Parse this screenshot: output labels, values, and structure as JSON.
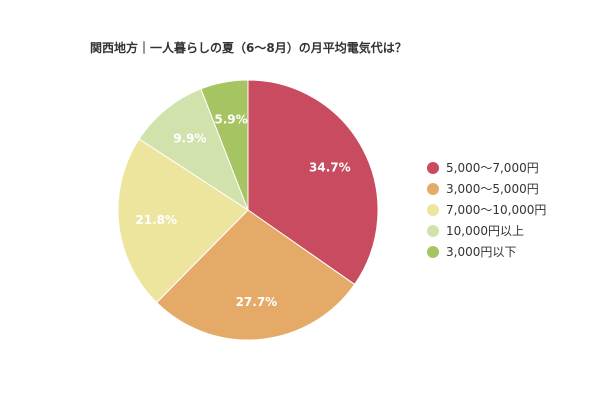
{
  "chart_data": {
    "type": "pie",
    "title": "関西地方｜一人暮らしの夏（6〜8月）の月平均電気代は？",
    "start_angle_deg": 0,
    "direction": "clockwise",
    "slices": [
      {
        "label": "5,000〜7,000円",
        "value": 34.7,
        "value_label": "34.7%",
        "color": "#c84b5f"
      },
      {
        "label": "3,000〜5,000円",
        "value": 27.7,
        "value_label": "27.7%",
        "color": "#e5aa68"
      },
      {
        "label": "7,000〜10,000円",
        "value": 21.8,
        "value_label": "21.8%",
        "color": "#ede59e"
      },
      {
        "label": "10,000円以上",
        "value": 9.9,
        "value_label": "9.9%",
        "color": "#d2e2ad"
      },
      {
        "label": "3,000円以下",
        "value": 5.9,
        "value_label": "5.9%",
        "color": "#a6c462"
      }
    ],
    "legend_position": "right"
  }
}
